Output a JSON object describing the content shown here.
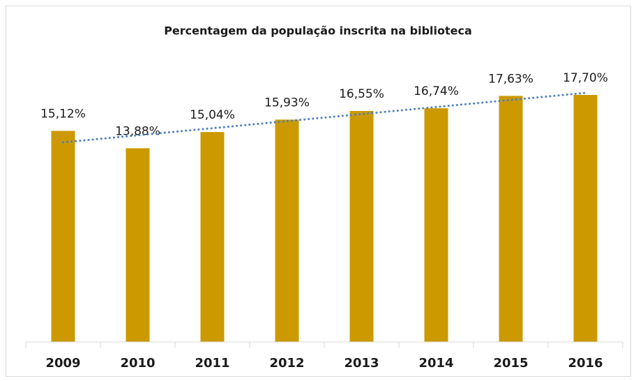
{
  "chart_data": {
    "type": "bar",
    "title": "Percentagem da população inscrita na biblioteca",
    "categories": [
      "2009",
      "2010",
      "2011",
      "2012",
      "2013",
      "2014",
      "2015",
      "2016"
    ],
    "values": [
      15.12,
      13.88,
      15.04,
      15.93,
      16.55,
      16.74,
      17.63,
      17.7
    ],
    "value_labels": [
      "15,12%",
      "13,88%",
      "15,04%",
      "15,93%",
      "16,55%",
      "16,74%",
      "17,63%",
      "17,70%"
    ],
    "color": "#cc9900",
    "ylim": [
      0,
      20
    ],
    "trendline": {
      "type": "linear",
      "color": "#4f81bd"
    }
  }
}
